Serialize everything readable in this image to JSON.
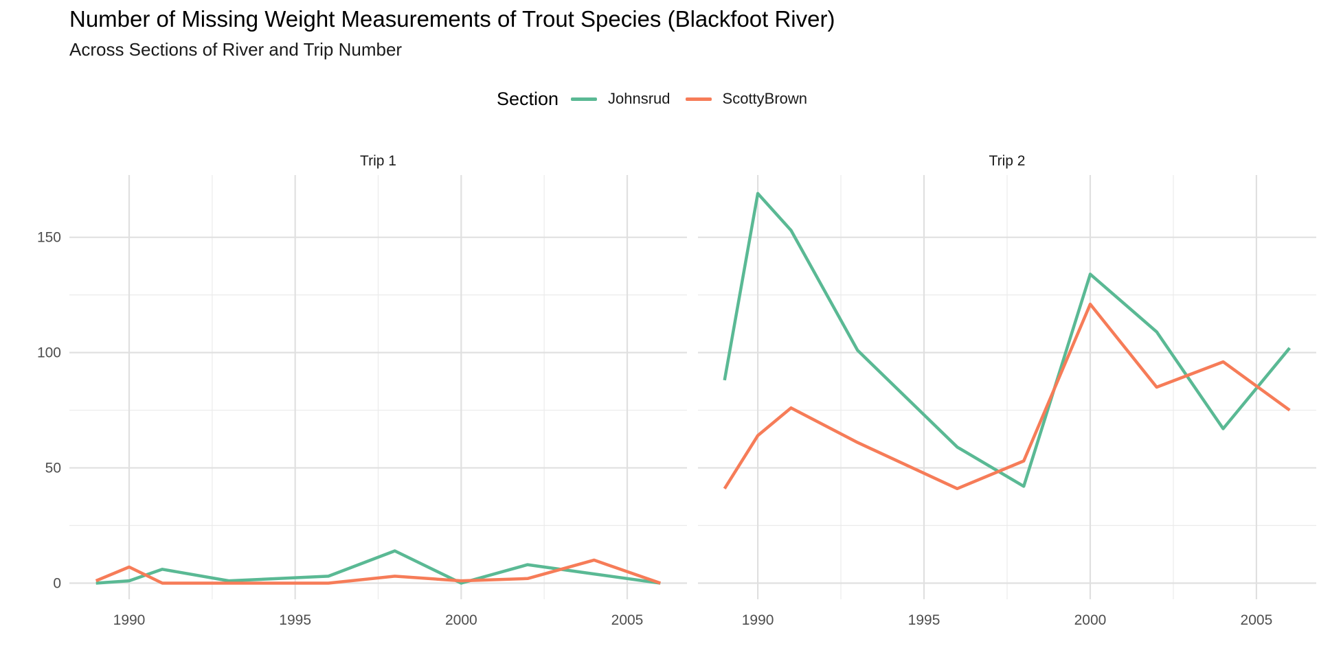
{
  "chart_data": {
    "type": "line",
    "title": "Number of Missing Weight Measurements of Trout Species (Blackfoot River)",
    "subtitle": "Across Sections of River and Trip Number",
    "xlabel": "",
    "ylabel": "",
    "legend": {
      "title": "Section",
      "position": "top",
      "entries": [
        {
          "name": "Johnsrud",
          "color": "#5ab994"
        },
        {
          "name": "ScottyBrown",
          "color": "#f67c58"
        }
      ]
    },
    "xlim": [
      1988.2,
      2006.8
    ],
    "ylim": [
      -7,
      177
    ],
    "x_ticks": [
      1990,
      1995,
      2000,
      2005
    ],
    "y_ticks": [
      0,
      50,
      100,
      150
    ],
    "grid": true,
    "panels": [
      {
        "label": "Trip 1",
        "series": [
          {
            "name": "Johnsrud",
            "x": [
              1989,
              1990,
              1991,
              1993,
              1996,
              1998,
              2000,
              2002,
              2004,
              2006
            ],
            "y": [
              0,
              1,
              6,
              1,
              3,
              14,
              0,
              8,
              4,
              0
            ]
          },
          {
            "name": "ScottyBrown",
            "x": [
              1989,
              1990,
              1991,
              1993,
              1996,
              1998,
              2000,
              2002,
              2004,
              2006
            ],
            "y": [
              1,
              7,
              0,
              0,
              0,
              3,
              1,
              2,
              10,
              0
            ]
          }
        ]
      },
      {
        "label": "Trip 2",
        "series": [
          {
            "name": "Johnsrud",
            "x": [
              1989,
              1990,
              1991,
              1993,
              1996,
              1998,
              2000,
              2002,
              2004,
              2006
            ],
            "y": [
              88,
              169,
              153,
              101,
              59,
              42,
              134,
              109,
              67,
              102
            ]
          },
          {
            "name": "ScottyBrown",
            "x": [
              1989,
              1990,
              1991,
              1993,
              1996,
              1998,
              2000,
              2002,
              2004,
              2006
            ],
            "y": [
              41,
              64,
              76,
              61,
              41,
              53,
              121,
              85,
              96,
              75
            ]
          }
        ]
      }
    ]
  }
}
